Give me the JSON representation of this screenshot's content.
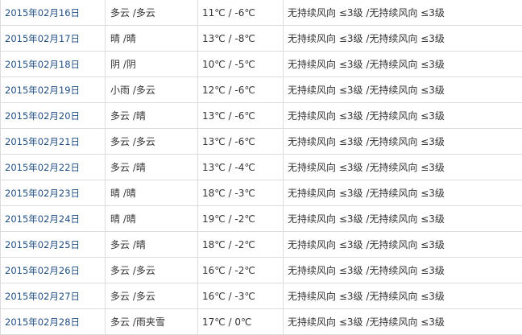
{
  "rows": [
    {
      "date": "2015年02月16日",
      "weather": "多云 /多云",
      "temp": "11℃ / -6℃",
      "wind": "无持续风向 ≤3级 /无持续风向 ≤3级"
    },
    {
      "date": "2015年02月17日",
      "weather": "晴 /晴",
      "temp": "13℃ / -8℃",
      "wind": "无持续风向 ≤3级 /无持续风向 ≤3级"
    },
    {
      "date": "2015年02月18日",
      "weather": "阴 /阴",
      "temp": "10℃ / -5℃",
      "wind": "无持续风向 ≤3级 /无持续风向 ≤3级"
    },
    {
      "date": "2015年02月19日",
      "weather": "小雨 /多云",
      "temp": "12℃ / -6℃",
      "wind": "无持续风向 ≤3级 /无持续风向 ≤3级"
    },
    {
      "date": "2015年02月20日",
      "weather": "多云 /晴",
      "temp": "13℃ / -6℃",
      "wind": "无持续风向 ≤3级 /无持续风向 ≤3级"
    },
    {
      "date": "2015年02月21日",
      "weather": "多云 /多云",
      "temp": "13℃ / -6℃",
      "wind": "无持续风向 ≤3级 /无持续风向 ≤3级"
    },
    {
      "date": "2015年02月22日",
      "weather": "多云 /晴",
      "temp": "13℃ / -4℃",
      "wind": "无持续风向 ≤3级 /无持续风向 ≤3级"
    },
    {
      "date": "2015年02月23日",
      "weather": "晴 /晴",
      "temp": "18℃ / -3℃",
      "wind": "无持续风向 ≤3级 /无持续风向 ≤3级"
    },
    {
      "date": "2015年02月24日",
      "weather": "晴 /晴",
      "temp": "19℃ / -2℃",
      "wind": "无持续风向 ≤3级 /无持续风向 ≤3级"
    },
    {
      "date": "2015年02月25日",
      "weather": "多云 /晴",
      "temp": "18℃ / -2℃",
      "wind": "无持续风向 ≤3级 /无持续风向 ≤3级"
    },
    {
      "date": "2015年02月26日",
      "weather": "多云 /多云",
      "temp": "16℃ / -2℃",
      "wind": "无持续风向 ≤3级 /无持续风向 ≤3级"
    },
    {
      "date": "2015年02月27日",
      "weather": "多云 /多云",
      "temp": "16℃ / -3℃",
      "wind": "无持续风向 ≤3级 /无持续风向 ≤3级"
    },
    {
      "date": "2015年02月28日",
      "weather": "多云 /雨夹雪",
      "temp": "17℃ / 0℃",
      "wind": "无持续风向 ≤3级 /无持续风向 ≤3级"
    }
  ]
}
